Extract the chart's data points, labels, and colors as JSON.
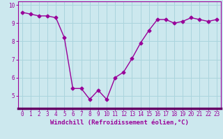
{
  "x": [
    0,
    1,
    2,
    3,
    4,
    5,
    6,
    7,
    8,
    9,
    10,
    11,
    12,
    13,
    14,
    15,
    16,
    17,
    18,
    19,
    20,
    21,
    22,
    23
  ],
  "y": [
    9.6,
    9.5,
    9.4,
    9.4,
    9.3,
    8.2,
    5.4,
    5.4,
    4.8,
    5.3,
    4.8,
    6.0,
    6.3,
    7.05,
    7.9,
    8.6,
    9.2,
    9.2,
    9.0,
    9.1,
    9.3,
    9.2,
    9.1,
    9.2
  ],
  "line_color": "#990099",
  "marker": "D",
  "marker_size": 2.5,
  "linewidth": 1.0,
  "xlabel": "Windchill (Refroidissement éolien,°C)",
  "xlabel_fontsize": 6.5,
  "background_color": "#cce8ee",
  "grid_color": "#aad4dd",
  "ylim": [
    4.3,
    10.2
  ],
  "xlim": [
    -0.5,
    23.5
  ],
  "yticks": [
    5,
    6,
    7,
    8,
    9,
    10
  ],
  "xticks": [
    0,
    1,
    2,
    3,
    4,
    5,
    6,
    7,
    8,
    9,
    10,
    11,
    12,
    13,
    14,
    15,
    16,
    17,
    18,
    19,
    20,
    21,
    22,
    23
  ],
  "tick_fontsize": 5.5,
  "tick_color": "#990099",
  "spine_color": "#990099",
  "xaxis_bar_color": "#660066"
}
